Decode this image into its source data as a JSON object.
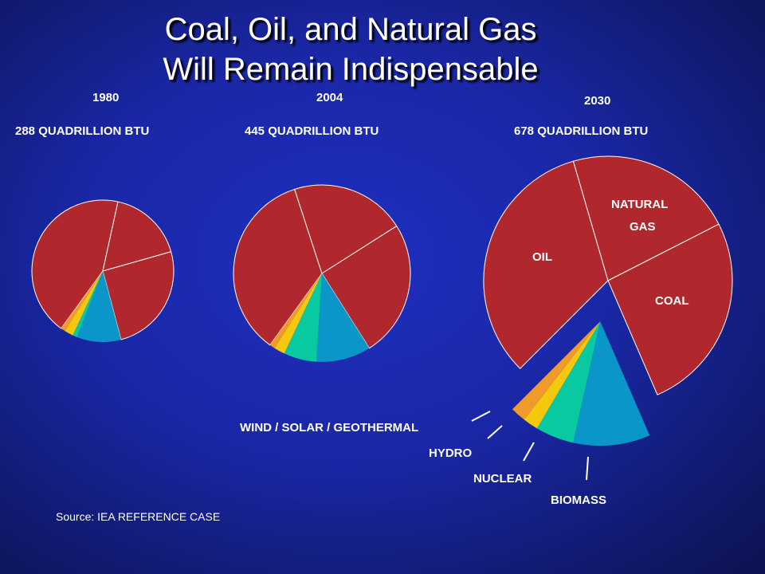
{
  "title": {
    "line1": "Coal, Oil, and Natural Gas",
    "line2": "Will Remain Indispensable"
  },
  "colors": {
    "oil": "#b0272e",
    "natural_gas": "#b0272e",
    "coal": "#b0272e",
    "biomass": "#0a96c8",
    "nuclear": "#08c9a0",
    "hydro": "#f4c80c",
    "wind_solar_geothermal": "#f09a2a"
  },
  "chart_data": [
    {
      "type": "pie",
      "year": "1980",
      "total": "288 QUADRILLION BTU",
      "labels": [
        "OIL",
        "NATURAL GAS",
        "COAL",
        "BIOMASS",
        "NUCLEAR",
        "HYDRO",
        "WIND / SOLAR / GEOTHERMAL"
      ],
      "values": [
        43,
        17,
        25,
        10,
        1,
        2,
        1
      ]
    },
    {
      "type": "pie",
      "year": "2004",
      "total": "445 QUADRILLION BTU",
      "labels": [
        "OIL",
        "NATURAL GAS",
        "COAL",
        "BIOMASS",
        "NUCLEAR",
        "HYDRO",
        "WIND / SOLAR / GEOTHERMAL"
      ],
      "values": [
        35,
        21,
        25,
        10,
        6,
        2,
        1
      ]
    },
    {
      "type": "pie",
      "year": "2030",
      "total": "678 QUADRILLION BTU",
      "labels": [
        "OIL",
        "NATURAL GAS",
        "COAL",
        "BIOMASS",
        "NUCLEAR",
        "HYDRO",
        "WIND / SOLAR / GEOTHERMAL"
      ],
      "values": [
        33,
        22,
        26,
        10,
        5,
        2,
        2
      ]
    }
  ],
  "segment_labels": {
    "oil": "OIL",
    "natural_gas_line1": "NATURAL",
    "natural_gas_line2": "GAS",
    "coal": "COAL",
    "wind_solar_geothermal": "WIND / SOLAR / GEOTHERMAL",
    "hydro": "HYDRO",
    "nuclear": "NUCLEAR",
    "biomass": "BIOMASS"
  },
  "source": "Source: IEA REFERENCE CASE"
}
